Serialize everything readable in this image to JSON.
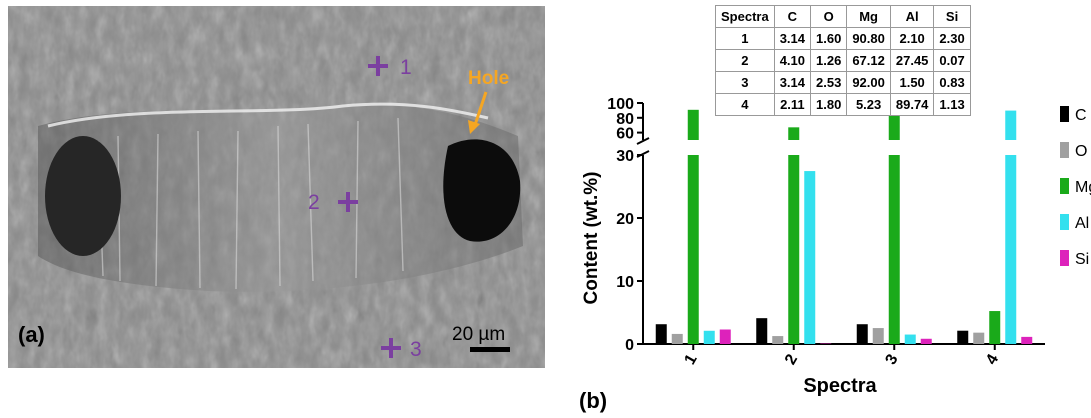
{
  "sem_image": {
    "panel_label": "(a)",
    "hole_label": "Hole",
    "scale_label": "20 µm",
    "spectrum_points": [
      "1",
      "2",
      "3"
    ],
    "colors": {
      "marker": "#7b3fa0",
      "hole": "#f5a623"
    }
  },
  "chart_data": {
    "type": "bar",
    "panel_label": "(b)",
    "xlabel": "Spectra",
    "ylabel": "Content (wt.%)",
    "categories": [
      "1",
      "2",
      "3",
      "4"
    ],
    "y_axis_lower": {
      "range": [
        0,
        30
      ],
      "ticks": [
        "0",
        "10",
        "20",
        "30"
      ]
    },
    "y_axis_upper": {
      "range": [
        50,
        100
      ],
      "ticks": [
        "60",
        "80",
        "100"
      ]
    },
    "axis_break": true,
    "legend_position": "right",
    "series": [
      {
        "name": "C",
        "color": "#000000",
        "values": [
          3.14,
          4.1,
          3.14,
          2.11
        ]
      },
      {
        "name": "O",
        "color": "#a0a0a0",
        "values": [
          1.6,
          1.26,
          2.53,
          1.8
        ]
      },
      {
        "name": "Mg",
        "color": "#1aaa1a",
        "values": [
          90.8,
          67.12,
          92.0,
          5.23
        ]
      },
      {
        "name": "Al",
        "color": "#33e0ee",
        "values": [
          2.1,
          27.45,
          1.5,
          89.74
        ]
      },
      {
        "name": "Si",
        "color": "#dd22bb",
        "values": [
          2.3,
          0.07,
          0.83,
          1.13
        ]
      }
    ],
    "table": {
      "header": [
        "Spectra",
        "C",
        "O",
        "Mg",
        "Al",
        "Si"
      ],
      "rows": [
        [
          "1",
          "3.14",
          "1.60",
          "90.80",
          "2.10",
          "2.30"
        ],
        [
          "2",
          "4.10",
          "1.26",
          "67.12",
          "27.45",
          "0.07"
        ],
        [
          "3",
          "3.14",
          "2.53",
          "92.00",
          "1.50",
          "0.83"
        ],
        [
          "4",
          "2.11",
          "1.80",
          "5.23",
          "89.74",
          "1.13"
        ]
      ]
    }
  }
}
